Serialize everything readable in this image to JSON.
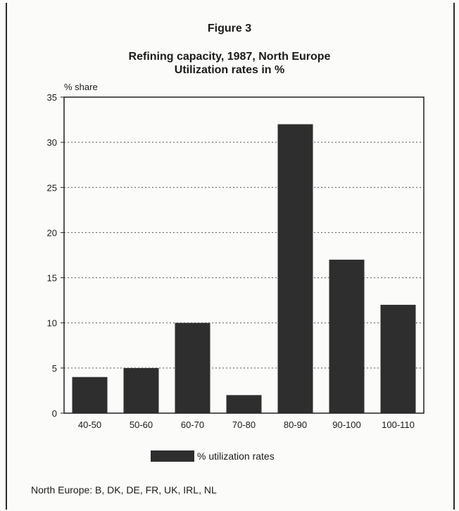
{
  "figure_label": "Figure 3",
  "chart_data": {
    "type": "bar",
    "title": "Refining capacity, 1987, North Europe",
    "subtitle": "Utilization rates in %",
    "ylabel": "% share",
    "xlabel": "",
    "categories": [
      "40-50",
      "50-60",
      "60-70",
      "70-80",
      "80-90",
      "90-100",
      "100-110"
    ],
    "series": [
      {
        "name": "% utilization rates",
        "values": [
          4,
          5,
          10,
          2,
          32,
          17,
          12
        ]
      }
    ],
    "ylim": [
      0,
      35
    ],
    "yticks": [
      0,
      5,
      10,
      15,
      20,
      25,
      30,
      35
    ],
    "grid": "dotted horizontal",
    "legend_position": "bottom",
    "bar_color": "#2e2e2e"
  },
  "footnote": "North Europe: B, DK, DE, FR, UK, IRL, NL"
}
